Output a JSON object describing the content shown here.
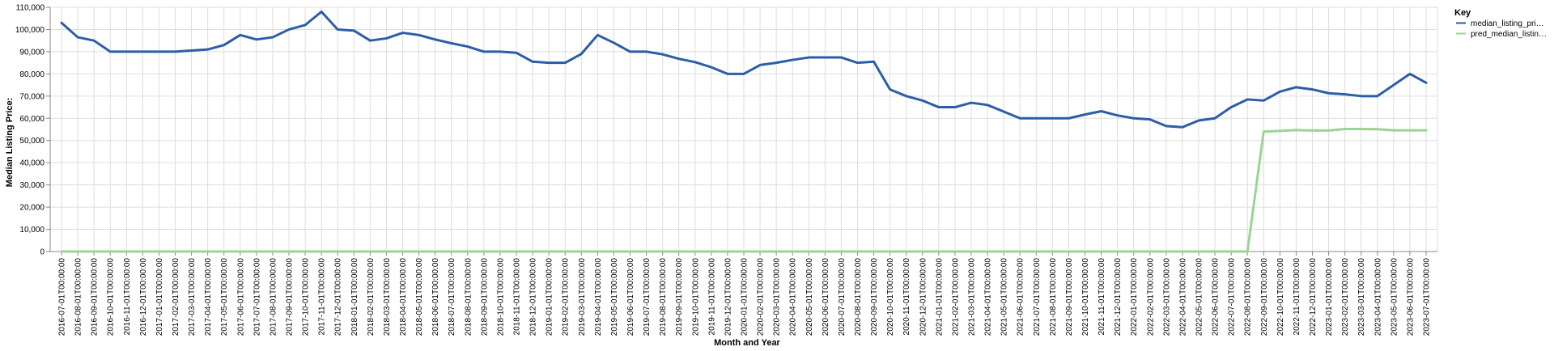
{
  "chart_data": {
    "type": "line",
    "xlabel": "Month and Year",
    "ylabel": "Median Listing Price:",
    "ylim": [
      0,
      110000
    ],
    "y_ticks": [
      0,
      10000,
      20000,
      30000,
      40000,
      50000,
      60000,
      70000,
      80000,
      90000,
      100000,
      110000
    ],
    "y_tick_labels": [
      "0",
      "10,000",
      "20,000",
      "30,000",
      "40,000",
      "50,000",
      "60,000",
      "70,000",
      "80,000",
      "90,000",
      "100,000",
      "110,000"
    ],
    "grid": true,
    "legend": {
      "title": "Key",
      "placement": "top-right",
      "entries": [
        "median_listing_pri…",
        "pred_median_listin…"
      ]
    },
    "x": [
      "2016-07-01T00:00:00",
      "2016-08-01T00:00:00",
      "2016-09-01T00:00:00",
      "2016-10-01T00:00:00",
      "2016-11-01T00:00:00",
      "2016-12-01T00:00:00",
      "2017-01-01T00:00:00",
      "2017-02-01T00:00:00",
      "2017-03-01T00:00:00",
      "2017-04-01T00:00:00",
      "2017-05-01T00:00:00",
      "2017-06-01T00:00:00",
      "2017-07-01T00:00:00",
      "2017-08-01T00:00:00",
      "2017-09-01T00:00:00",
      "2017-10-01T00:00:00",
      "2017-11-01T00:00:00",
      "2017-12-01T00:00:00",
      "2018-01-01T00:00:00",
      "2018-02-01T00:00:00",
      "2018-03-01T00:00:00",
      "2018-04-01T00:00:00",
      "2018-05-01T00:00:00",
      "2018-06-01T00:00:00",
      "2018-07-01T00:00:00",
      "2018-08-01T00:00:00",
      "2018-09-01T00:00:00",
      "2018-10-01T00:00:00",
      "2018-11-01T00:00:00",
      "2018-12-01T00:00:00",
      "2019-01-01T00:00:00",
      "2019-02-01T00:00:00",
      "2019-03-01T00:00:00",
      "2019-04-01T00:00:00",
      "2019-05-01T00:00:00",
      "2019-06-01T00:00:00",
      "2019-07-01T00:00:00",
      "2019-08-01T00:00:00",
      "2019-09-01T00:00:00",
      "2019-10-01T00:00:00",
      "2019-11-01T00:00:00",
      "2019-12-01T00:00:00",
      "2020-01-01T00:00:00",
      "2020-02-01T00:00:00",
      "2020-03-01T00:00:00",
      "2020-04-01T00:00:00",
      "2020-05-01T00:00:00",
      "2020-06-01T00:00:00",
      "2020-07-01T00:00:00",
      "2020-08-01T00:00:00",
      "2020-09-01T00:00:00",
      "2020-10-01T00:00:00",
      "2020-11-01T00:00:00",
      "2020-12-01T00:00:00",
      "2021-01-01T00:00:00",
      "2021-02-01T00:00:00",
      "2021-03-01T00:00:00",
      "2021-04-01T00:00:00",
      "2021-05-01T00:00:00",
      "2021-06-01T00:00:00",
      "2021-07-01T00:00:00",
      "2021-08-01T00:00:00",
      "2021-09-01T00:00:00",
      "2021-10-01T00:00:00",
      "2021-11-01T00:00:00",
      "2021-12-01T00:00:00",
      "2022-01-01T00:00:00",
      "2022-02-01T00:00:00",
      "2022-03-01T00:00:00",
      "2022-04-01T00:00:00",
      "2022-05-01T00:00:00",
      "2022-06-01T00:00:00",
      "2022-07-01T00:00:00",
      "2022-08-01T00:00:00",
      "2022-09-01T00:00:00",
      "2022-10-01T00:00:00",
      "2022-11-01T00:00:00",
      "2022-12-01T00:00:00",
      "2023-01-01T00:00:00",
      "2023-02-01T00:00:00",
      "2023-03-01T00:00:00",
      "2023-04-01T00:00:00",
      "2023-05-01T00:00:00",
      "2023-06-01T00:00:00",
      "2023-07-01T00:00:00"
    ],
    "series": [
      {
        "name": "median_listing_pri…",
        "color": "#2c5ea8",
        "values": [
          103000,
          96500,
          95000,
          90000,
          90000,
          90000,
          90000,
          90000,
          90500,
          91000,
          93000,
          97500,
          95500,
          96500,
          100000,
          102000,
          108000,
          100000,
          99500,
          95000,
          96000,
          98500,
          97500,
          95500,
          93800,
          92300,
          90000,
          90000,
          89500,
          85500,
          85000,
          85000,
          89000,
          97500,
          94000,
          90000,
          90000,
          88800,
          86800,
          85300,
          83000,
          80000,
          80000,
          84000,
          85000,
          86300,
          87400,
          87400,
          87400,
          85000,
          85500,
          73000,
          70000,
          68000,
          65000,
          65000,
          67000,
          66000,
          63000,
          60000,
          60000,
          60000,
          60000,
          61700,
          63200,
          61300,
          60000,
          59500,
          56500,
          56000,
          59000,
          60000,
          65000,
          68500,
          68000,
          72000,
          74000,
          73000,
          71300,
          70800,
          70000,
          70000,
          75000,
          80000,
          76000
        ]
      },
      {
        "name": "pred_median_listin…",
        "color": "#9ad494",
        "values": [
          0,
          0,
          0,
          0,
          0,
          0,
          0,
          0,
          0,
          0,
          0,
          0,
          0,
          0,
          0,
          0,
          0,
          0,
          0,
          0,
          0,
          0,
          0,
          0,
          0,
          0,
          0,
          0,
          0,
          0,
          0,
          0,
          0,
          0,
          0,
          0,
          0,
          0,
          0,
          0,
          0,
          0,
          0,
          0,
          0,
          0,
          0,
          0,
          0,
          0,
          0,
          0,
          0,
          0,
          0,
          0,
          0,
          0,
          0,
          0,
          0,
          0,
          0,
          0,
          0,
          0,
          0,
          0,
          0,
          0,
          0,
          0,
          0,
          0,
          54000,
          54300,
          54700,
          54500,
          54500,
          55200,
          55200,
          55100,
          54600,
          54600,
          54600
        ]
      }
    ]
  }
}
